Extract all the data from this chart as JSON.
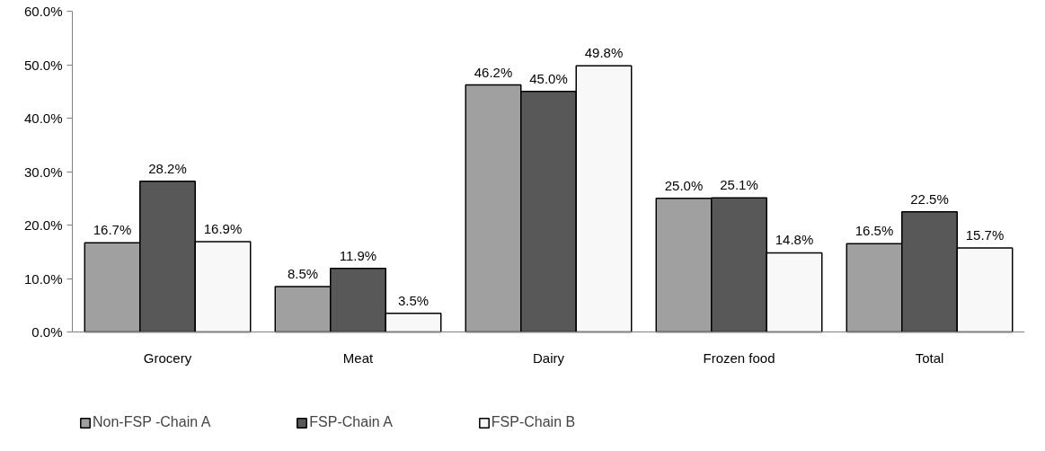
{
  "chart_data": {
    "type": "bar",
    "categories": [
      "Grocery",
      "Meat",
      "Dairy",
      "Frozen food",
      "Total"
    ],
    "series": [
      {
        "name": "Non-FSP -Chain A",
        "color": "#a0a0a0",
        "values": [
          16.7,
          8.5,
          46.2,
          25.0,
          16.5
        ],
        "value_labels": [
          "16.7%",
          "8.5%",
          "46.2%",
          "25.0%",
          "16.5%"
        ]
      },
      {
        "name": "FSP-Chain A",
        "color": "#585858",
        "values": [
          28.2,
          11.9,
          45.0,
          25.1,
          22.5
        ],
        "value_labels": [
          "28.2%",
          "11.9%",
          "45.0%",
          "25.1%",
          "22.5%"
        ]
      },
      {
        "name": "FSP-Chain B",
        "color": "#f8f8f8",
        "values": [
          16.9,
          3.5,
          49.8,
          14.8,
          15.7
        ],
        "value_labels": [
          "16.9%",
          "3.5%",
          "49.8%",
          "14.8%",
          "15.7%"
        ]
      }
    ],
    "ylim": [
      0,
      60
    ],
    "yticks": [
      {
        "value": 0,
        "label": "0.0%"
      },
      {
        "value": 10,
        "label": "10.0%"
      },
      {
        "value": 20,
        "label": "20.0%"
      },
      {
        "value": 30,
        "label": "30.0%"
      },
      {
        "value": 40,
        "label": "40.0%"
      },
      {
        "value": 50,
        "label": "50.0%"
      },
      {
        "value": 60,
        "label": "60.0%"
      }
    ],
    "grid": false,
    "legend": "bottom"
  }
}
